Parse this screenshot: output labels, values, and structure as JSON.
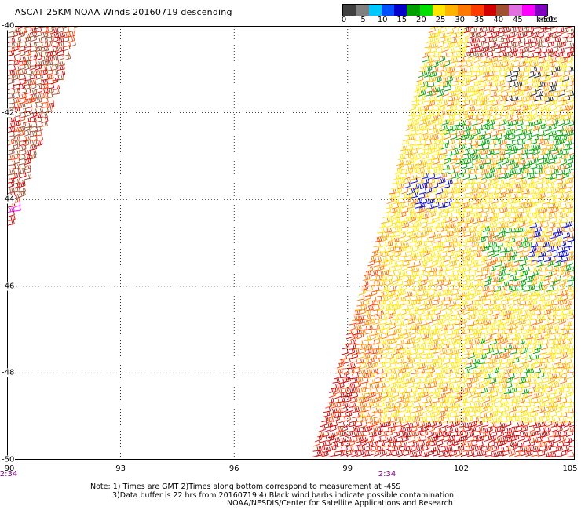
{
  "title": "ASCAT 25KM NOAA Winds 20160719 descending",
  "color_scale": {
    "labels": [
      "0",
      "5",
      "10",
      "15",
      "20",
      "25",
      "30",
      "35",
      "40",
      "45",
      ">50"
    ],
    "unit": "knots",
    "colors": [
      "#404040",
      "#808080",
      "#00c8ff",
      "#0050ff",
      "#0000c8",
      "#00a000",
      "#00e000",
      "#ffe600",
      "#ffb400",
      "#ff7800",
      "#ff3c00",
      "#d00000",
      "#a05030",
      "#e070e0",
      "#ff00ff",
      "#8000c0"
    ]
  },
  "map": {
    "lat_labels": [
      "-40",
      "-42",
      "-44",
      "-46",
      "-48",
      "-50"
    ],
    "lat_values": [
      -40,
      -42,
      -44,
      -46,
      -48,
      -50
    ],
    "lon_labels": [
      "90",
      "93",
      "96",
      "99",
      "102",
      "105"
    ],
    "lon_values": [
      90,
      93,
      96,
      99,
      102,
      105
    ],
    "lat_range": [
      -50,
      -40
    ],
    "lon_range": [
      90,
      105
    ],
    "time_labels": [
      {
        "text": "2:34",
        "lon": 90
      },
      {
        "text": "2:34",
        "lon": 100
      }
    ]
  },
  "notes": [
    "Note: 1) Times are GMT 2)Times along bottom correspond to measurement at -45S",
    "3)Data buffer is 22 hrs from 20160719 4) Black wind barbs indicate possible contamination",
    "NOAA/NESDIS/Center for Satellite Applications and Research"
  ]
}
